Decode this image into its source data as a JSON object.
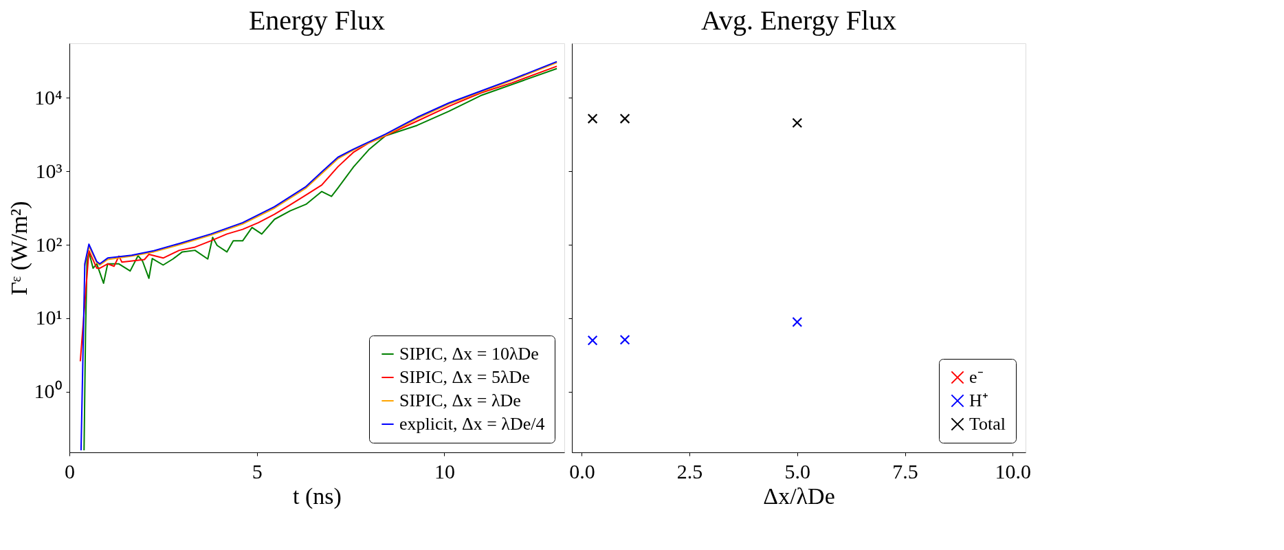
{
  "chart_data": [
    {
      "type": "line",
      "title": "Energy Flux",
      "xlabel": "t (ns)",
      "ylabel": "Γᵋ (W/m²)",
      "log": "y",
      "grid": false,
      "legend": "bottom right",
      "line_style": "solid",
      "marker": "none",
      "xlim": [
        0,
        13.2
      ],
      "xticks": [
        0,
        5,
        10
      ],
      "ylim": [
        0.15,
        55000
      ],
      "yticks": [
        {
          "value": 1,
          "label": "10⁰"
        },
        {
          "value": 10,
          "label": "10¹"
        },
        {
          "value": 100,
          "label": "10²"
        },
        {
          "value": 1000,
          "label": "10³"
        },
        {
          "value": 10000,
          "label": "10⁴"
        }
      ],
      "series": [
        {
          "name": "SIPIC, Δx = 10λDe",
          "color": "#008000",
          "x": [
            0.39,
            0.43,
            0.47,
            0.52,
            0.63,
            0.73,
            0.91,
            1.02,
            1.32,
            1.62,
            1.83,
            1.95,
            2.12,
            2.21,
            2.5,
            2.76,
            3.01,
            3.35,
            3.69,
            3.82,
            3.94,
            4.2,
            4.37,
            4.62,
            4.87,
            5.13,
            5.47,
            5.89,
            6.31,
            6.73,
            6.99,
            7.16,
            7.58,
            8.0,
            8.43,
            9.27,
            10.12,
            10.97,
            11.81,
            13.0
          ],
          "values": [
            0.16,
            6.5,
            62,
            80,
            48,
            55,
            30,
            55,
            55,
            44,
            71,
            60,
            35,
            65,
            53,
            64,
            80,
            84,
            64,
            126,
            98,
            80,
            113,
            113,
            172,
            140,
            222,
            290,
            355,
            530,
            455,
            590,
            1150,
            2000,
            3040,
            4200,
            6550,
            10700,
            15200,
            24900
          ]
        },
        {
          "name": "SIPIC, Δx = 5λDe",
          "color": "#ff0000",
          "x": [
            0.29,
            0.52,
            0.73,
            0.81,
            1.02,
            1.19,
            1.32,
            1.4,
            2.0,
            2.12,
            2.5,
            2.93,
            3.35,
            3.77,
            4.2,
            4.62,
            5.04,
            5.47,
            5.89,
            6.31,
            6.73,
            7.16,
            7.58,
            8.0,
            8.43,
            9.27,
            10.12,
            10.97,
            11.81,
            13.0
          ],
          "values": [
            2.6,
            83,
            48,
            48,
            55,
            51,
            70,
            58,
            63,
            74,
            66,
            84,
            93,
            113,
            140,
            162,
            200,
            260,
            350,
            475,
            650,
            1150,
            1820,
            2450,
            3040,
            4800,
            7650,
            11600,
            16000,
            26800
          ]
        },
        {
          "name": "SIPIC, Δx = λDe",
          "color": "#ffa500",
          "x": [
            0.41,
            0.52,
            0.73,
            0.81,
            1.02,
            1.66,
            2.25,
            2.93,
            3.77,
            4.62,
            5.47,
            6.31,
            6.73,
            7.16,
            7.58,
            8.43,
            9.27,
            10.12,
            10.97,
            11.81,
            13.0
          ],
          "values": [
            52,
            95,
            57,
            53,
            63,
            70,
            80,
            100,
            135,
            192,
            315,
            590,
            930,
            1480,
            1950,
            3100,
            5200,
            8200,
            12000,
            17300,
            30000
          ]
        },
        {
          "name": "explicit, Δx = λDe/4",
          "color": "#0000ff",
          "x": [
            0.31,
            0.41,
            0.52,
            0.73,
            0.81,
            1.02,
            1.66,
            2.25,
            2.93,
            3.77,
            4.62,
            5.47,
            6.31,
            6.73,
            7.16,
            7.58,
            8.43,
            9.27,
            10.12,
            10.97,
            11.81,
            13.0
          ],
          "values": [
            0.16,
            55,
            102,
            59,
            55,
            66,
            72,
            83,
            104,
            140,
            200,
            330,
            620,
            980,
            1550,
            2000,
            3200,
            5400,
            8500,
            12300,
            17800,
            31000
          ]
        }
      ]
    },
    {
      "type": "scatter",
      "title": "Avg. Energy Flux",
      "xlabel": "Δx/λDe",
      "log": "y",
      "grid": false,
      "legend": "bottom right",
      "marker": "cross",
      "tick_labels": "x",
      "xlim": [
        -0.23,
        10.3
      ],
      "xticks": [
        {
          "value": 0,
          "label": "0.0"
        },
        {
          "value": 2.5,
          "label": "2.5"
        },
        {
          "value": 5,
          "label": "5.0"
        },
        {
          "value": 7.5,
          "label": "7.5"
        },
        {
          "value": 10,
          "label": "10.0"
        }
      ],
      "ylim": [
        0.15,
        55000
      ],
      "yticks": [
        1,
        10,
        100,
        1000,
        10000
      ],
      "x": [
        0.25,
        1,
        5
      ],
      "series": [
        {
          "name": "e⁻",
          "color": "#ff0000",
          "values": [
            null,
            null,
            null
          ]
        },
        {
          "name": "H⁺",
          "color": "#0000ff",
          "values": [
            5.0,
            5.1,
            8.9
          ]
        },
        {
          "name": "Total",
          "color": "#000000",
          "values": [
            5200,
            5200,
            4550
          ]
        }
      ]
    }
  ]
}
